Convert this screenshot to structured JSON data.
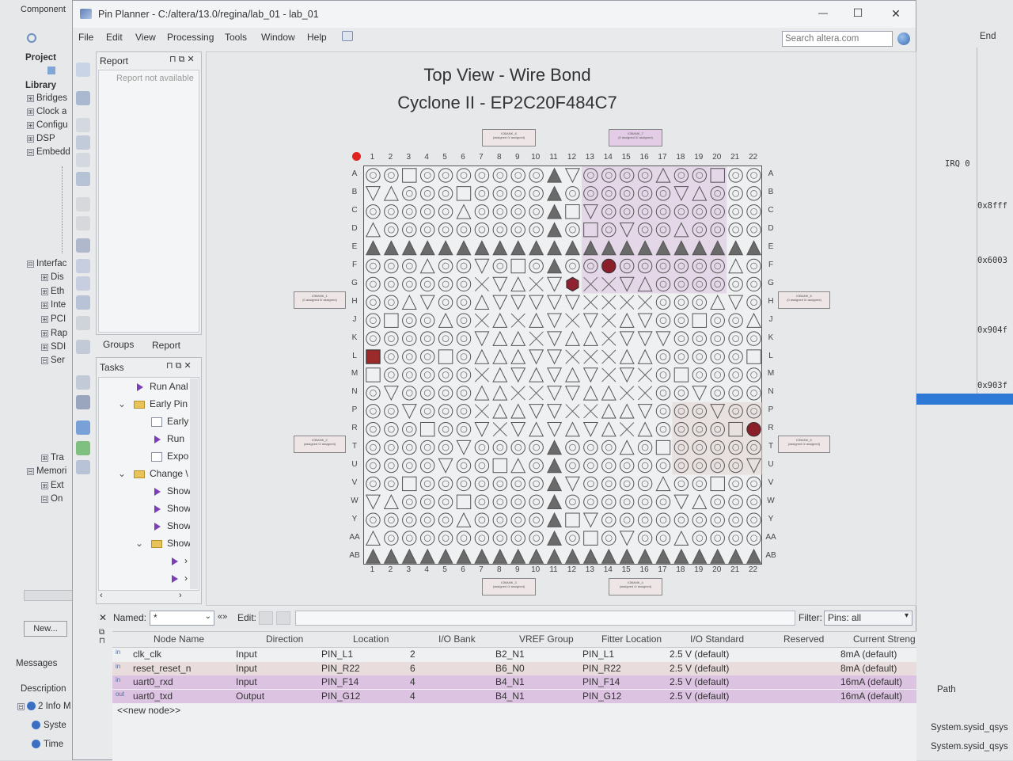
{
  "app": {
    "title": "Pin Planner - C:/altera/13.0/regina/lab_01 - lab_01",
    "menu": [
      "File",
      "Edit",
      "View",
      "Processing",
      "Tools",
      "Window",
      "Help"
    ],
    "search_placeholder": "Search altera.com",
    "controls": {
      "minimize": "—",
      "maximize": "☐",
      "close": "✕"
    }
  },
  "bg_left": {
    "tab": "Component",
    "project": "Project",
    "library": "Library",
    "tree": [
      {
        "exp": "⊞",
        "label": "Bridges",
        "indent": 0
      },
      {
        "exp": "⊞",
        "label": "Clock a",
        "indent": 0
      },
      {
        "exp": "⊞",
        "label": "Configu",
        "indent": 0
      },
      {
        "exp": "⊞",
        "label": "DSP",
        "indent": 0
      },
      {
        "exp": "⊟",
        "label": "Embedd",
        "indent": 0
      }
    ],
    "tree2": [
      {
        "exp": "⊟",
        "label": "Interfac",
        "indent": 0
      },
      {
        "exp": "⊞",
        "label": "Dis",
        "indent": 1
      },
      {
        "exp": "⊞",
        "label": "Eth",
        "indent": 1
      },
      {
        "exp": "⊞",
        "label": "Inte",
        "indent": 1
      },
      {
        "exp": "⊞",
        "label": "PCI",
        "indent": 1
      },
      {
        "exp": "⊞",
        "label": "Rap",
        "indent": 1
      },
      {
        "exp": "⊞",
        "label": "SDI",
        "indent": 1
      },
      {
        "exp": "⊟",
        "label": "Ser",
        "indent": 1
      }
    ],
    "tree3": [
      {
        "exp": "⊞",
        "label": "Tra",
        "indent": 1
      },
      {
        "exp": "⊟",
        "label": "Memori",
        "indent": 0
      },
      {
        "exp": "⊞",
        "label": "Ext",
        "indent": 1
      },
      {
        "exp": "⊟",
        "label": "On",
        "indent": 1
      }
    ],
    "new_button": "New...",
    "messages_tab": "Messages",
    "description_header": "Description",
    "messages": [
      "2 Info M",
      "Syste",
      "Time"
    ]
  },
  "bg_right": {
    "header": "End",
    "irq": "IRQ  0",
    "addresses": [
      "0x8fff",
      "0x6003",
      "0x904f",
      "0x903f"
    ],
    "path_header": "Path",
    "paths": [
      "System.sysid_qsys",
      "System.sysid_qsys"
    ]
  },
  "report_panel": {
    "title": "Report",
    "empty": "Report not available",
    "tabs": [
      "Groups",
      "Report"
    ]
  },
  "tasks_panel": {
    "title": "Tasks",
    "items": [
      {
        "kind": "run",
        "label": "Run Anal",
        "level": 2
      },
      {
        "kind": "folder",
        "label": "Early Pin",
        "level": 1,
        "open": true
      },
      {
        "kind": "doc",
        "label": "Early",
        "level": 2
      },
      {
        "kind": "run",
        "label": "Run",
        "level": 2
      },
      {
        "kind": "doc",
        "label": "Expo",
        "level": 2
      },
      {
        "kind": "folder",
        "label": "Change \\",
        "level": 1,
        "open": true
      },
      {
        "kind": "run",
        "label": "Show",
        "level": 2
      },
      {
        "kind": "run",
        "label": "Show",
        "level": 2
      },
      {
        "kind": "run",
        "label": "Show",
        "level": 2
      },
      {
        "kind": "folder",
        "label": "Show",
        "level": 2,
        "open": true
      },
      {
        "kind": "run",
        "label": "›",
        "level": 3
      },
      {
        "kind": "run",
        "label": "›",
        "level": 3
      }
    ]
  },
  "package_view": {
    "title": "Top View - Wire Bond",
    "subtitle": "Cyclone II - EP2C20F484C7",
    "columns": [
      "1",
      "2",
      "3",
      "4",
      "5",
      "6",
      "7",
      "8",
      "9",
      "10",
      "11",
      "12",
      "13",
      "14",
      "15",
      "16",
      "17",
      "18",
      "19",
      "20",
      "21",
      "22"
    ],
    "rows": [
      "A",
      "B",
      "C",
      "D",
      "E",
      "F",
      "G",
      "H",
      "J",
      "K",
      "L",
      "M",
      "N",
      "P",
      "R",
      "T",
      "U",
      "V",
      "W",
      "Y",
      "AA",
      "AB"
    ],
    "assigned_pins": [
      "L1",
      "R22",
      "F14",
      "G12"
    ],
    "banks": [
      {
        "name": "IOBANK_8",
        "info": "(assigned 0/ assigned)",
        "color": "plain"
      },
      {
        "name": "IOBANK_7",
        "info": "(0 assigned 0/ assigned)",
        "color": "pink"
      },
      {
        "name": "IOBANK_1",
        "info": "(0 assigned 0/ assigned)",
        "color": "plain"
      },
      {
        "name": "IOBANK_2",
        "info": "(assigned 0/ assigned)",
        "color": "plain"
      },
      {
        "name": "IOBANK_6",
        "info": "(0 assigned 0/ assigned)",
        "color": "plain"
      },
      {
        "name": "IOBANK_5",
        "info": "(assigned 0/ assigned)",
        "color": "plain"
      },
      {
        "name": "IOBANK_3",
        "info": "(assigned 0/ assigned)",
        "color": "plain"
      },
      {
        "name": "IOBANK_4",
        "info": "(assigned 0/ assigned)",
        "color": "plain"
      }
    ]
  },
  "node_filter": {
    "named_label": "Named:",
    "named_value": "*",
    "edit_label": "Edit:",
    "filter_label": "Filter:",
    "filter_value": "Pins: all"
  },
  "node_table": {
    "headers": [
      "Node Name",
      "Direction",
      "Location",
      "I/O Bank",
      "VREF Group",
      "Fitter Location",
      "I/O Standard",
      "Reserved",
      "Current Streng"
    ],
    "rows": [
      {
        "icon": "in",
        "name": "clk_clk",
        "direction": "Input",
        "location": "PIN_L1",
        "bank": "2",
        "vref": "B2_N1",
        "fitter": "PIN_L1",
        "std": "2.5 V (default)",
        "reserved": "",
        "current": "8mA (default)",
        "color": "#eef0f2"
      },
      {
        "icon": "in",
        "name": "reset_reset_n",
        "direction": "Input",
        "location": "PIN_R22",
        "bank": "6",
        "vref": "B6_N0",
        "fitter": "PIN_R22",
        "std": "2.5 V (default)",
        "reserved": "",
        "current": "8mA (default)",
        "color": "#e9dcdc"
      },
      {
        "icon": "in",
        "name": "uart0_rxd",
        "direction": "Input",
        "location": "PIN_F14",
        "bank": "4",
        "vref": "B4_N1",
        "fitter": "PIN_F14",
        "std": "2.5 V (default)",
        "reserved": "",
        "current": "16mA (default)",
        "color": "#dcc3e2"
      },
      {
        "icon": "out",
        "name": "uart0_txd",
        "direction": "Output",
        "location": "PIN_G12",
        "bank": "4",
        "vref": "B4_N1",
        "fitter": "PIN_G12",
        "std": "2.5 V (default)",
        "reserved": "",
        "current": "16mA (default)",
        "color": "#dcc3e2"
      }
    ],
    "new_node": "<<new node>>"
  }
}
